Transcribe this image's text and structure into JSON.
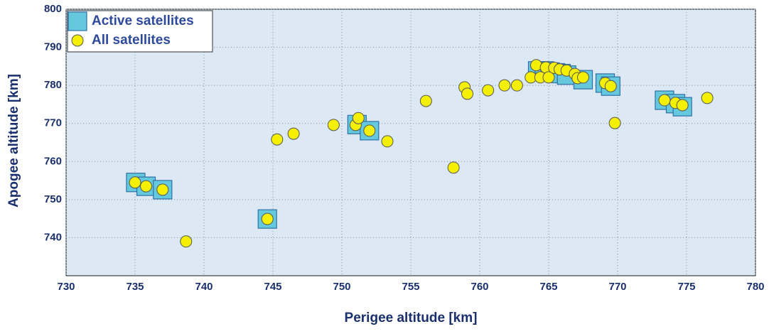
{
  "chart_data": {
    "type": "scatter",
    "x_label": "Perigee altitude [km]",
    "y_label": "Apogee altitude [km]",
    "xlim": [
      730,
      780
    ],
    "xticks": [
      730,
      735,
      740,
      745,
      750,
      755,
      760,
      765,
      770,
      775,
      780
    ],
    "ylim": [
      730,
      800
    ],
    "yticks": [
      740,
      750,
      760,
      770,
      780,
      790,
      800
    ],
    "grid": true,
    "legend": "upper left",
    "series": [
      {
        "name": "Active satellites",
        "color": "#66c8dc",
        "marker": "square",
        "x": [
          735.05,
          735.8,
          737.0,
          744.6,
          751.1,
          752.0,
          764.2,
          764.7,
          765.1,
          765.5,
          765.9,
          766.3,
          767.5,
          769.1,
          769.5,
          773.4,
          774.2,
          774.7
        ],
        "y": [
          754.5,
          753.5,
          752.6,
          744.9,
          769.7,
          768.1,
          783.8,
          783.8,
          783.5,
          783.3,
          783.1,
          782.7,
          781.5,
          780.6,
          779.8,
          776.1,
          775.2,
          774.4
        ]
      },
      {
        "name": "All satellites",
        "color": "#f5f000",
        "marker": "circle",
        "x": [
          735.0,
          735.8,
          737.0,
          738.7,
          744.6,
          745.3,
          746.5,
          749.4,
          751.0,
          751.2,
          752.0,
          753.3,
          756.1,
          758.1,
          758.9,
          759.1,
          760.6,
          761.8,
          762.7,
          763.7,
          764.1,
          764.4,
          764.8,
          765.0,
          765.4,
          765.8,
          766.3,
          766.9,
          767.1,
          767.5,
          769.1,
          769.5,
          769.8,
          773.4,
          774.2,
          774.7,
          776.5
        ],
        "y": [
          754.5,
          753.5,
          752.6,
          739.0,
          744.9,
          765.8,
          767.3,
          769.6,
          769.6,
          771.4,
          768.1,
          765.3,
          775.9,
          758.4,
          779.5,
          777.8,
          778.7,
          780.0,
          780.0,
          782.1,
          785.3,
          782.1,
          784.7,
          782.1,
          784.6,
          784.2,
          783.9,
          783.0,
          781.9,
          782.1,
          780.6,
          779.8,
          770.1,
          776.1,
          775.4,
          774.8,
          776.7
        ]
      }
    ]
  }
}
